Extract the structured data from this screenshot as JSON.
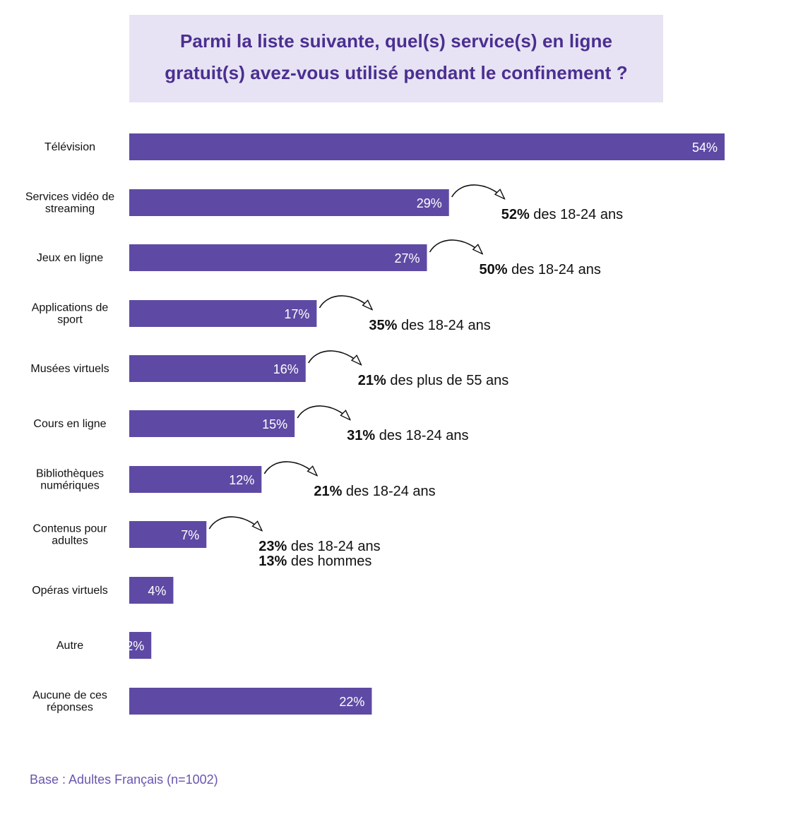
{
  "title": {
    "line1": "Parmi la liste suivante, quel(s) service(s) en ligne",
    "line2": "gratuit(s) avez-vous utilisé pendant le confinement ?"
  },
  "chart_data": {
    "type": "bar",
    "orientation": "horizontal",
    "unit": "%",
    "categories": [
      [
        "Télévision"
      ],
      [
        "Services vidéo de",
        "streaming"
      ],
      [
        "Jeux en ligne"
      ],
      [
        "Applications de",
        "sport"
      ],
      [
        "Musées virtuels"
      ],
      [
        "Cours en ligne"
      ],
      [
        "Bibliothèques",
        "numériques"
      ],
      [
        "Contenus pour",
        "adultes"
      ],
      [
        "Opéras virtuels"
      ],
      [
        "Autre"
      ],
      [
        "Aucune de ces",
        "réponses"
      ]
    ],
    "values": [
      54,
      29,
      27,
      17,
      16,
      15,
      12,
      7,
      4,
      2,
      22
    ],
    "value_labels": [
      "54%",
      "29%",
      "27%",
      "17%",
      "16%",
      "15%",
      "12%",
      "7%",
      "4%",
      "2%",
      "22%"
    ],
    "annotations": [
      {
        "category_index": 1,
        "lines": [
          {
            "bold": "52%",
            "rest": " des 18-24 ans"
          }
        ]
      },
      {
        "category_index": 2,
        "lines": [
          {
            "bold": "50%",
            "rest": " des 18-24 ans"
          }
        ]
      },
      {
        "category_index": 3,
        "lines": [
          {
            "bold": "35%",
            "rest": " des 18-24 ans"
          }
        ]
      },
      {
        "category_index": 4,
        "lines": [
          {
            "bold": "21%",
            "rest": " des plus de 55 ans"
          }
        ]
      },
      {
        "category_index": 5,
        "lines": [
          {
            "bold": "31%",
            "rest": " des 18-24 ans"
          }
        ]
      },
      {
        "category_index": 6,
        "lines": [
          {
            "bold": "21%",
            "rest": " des 18-24 ans"
          }
        ]
      },
      {
        "category_index": 7,
        "lines": [
          {
            "bold": "23%",
            "rest": " des 18-24 ans"
          },
          {
            "bold": "13%",
            "rest": " des hommes"
          }
        ]
      }
    ],
    "xlim": [
      0,
      54
    ],
    "grid": false,
    "legend": "none",
    "colors": {
      "bar": "#5e4aa4",
      "bar_text": "#ffffff",
      "title": "#4b2f91",
      "title_bg": "#e7e3f4",
      "footnote": "#6a55b0"
    }
  },
  "footnote": "Base : Adultes Français (n=1002)"
}
